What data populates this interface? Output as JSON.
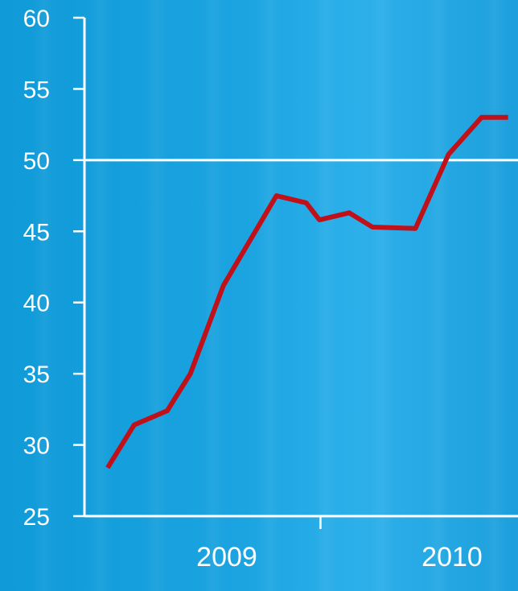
{
  "chart_data": {
    "type": "line",
    "title": "",
    "xlabel": "",
    "ylabel": "",
    "x_tick_labels": [
      "2009",
      "2010"
    ],
    "y_ticks": [
      "60",
      "55",
      "50",
      "45",
      "40",
      "35",
      "30",
      "25"
    ],
    "ylim": [
      25,
      60
    ],
    "reference_line": 50,
    "grid": false,
    "colors": {
      "line": "#c0111a",
      "axes": "#ffffff",
      "background": "#1aa3e0"
    },
    "series": [
      {
        "x": [
          2009.07,
          2009.15,
          2009.25,
          2009.32,
          2009.42,
          2009.58,
          2009.67,
          2009.71,
          2009.8,
          2009.87,
          2010.0,
          2010.1,
          2010.2,
          2010.28
        ],
        "values": [
          28.4,
          31.4,
          32.4,
          35.0,
          41.2,
          47.5,
          47.0,
          45.8,
          46.3,
          45.3,
          45.2,
          50.4,
          53.0,
          53.0
        ]
      }
    ]
  }
}
